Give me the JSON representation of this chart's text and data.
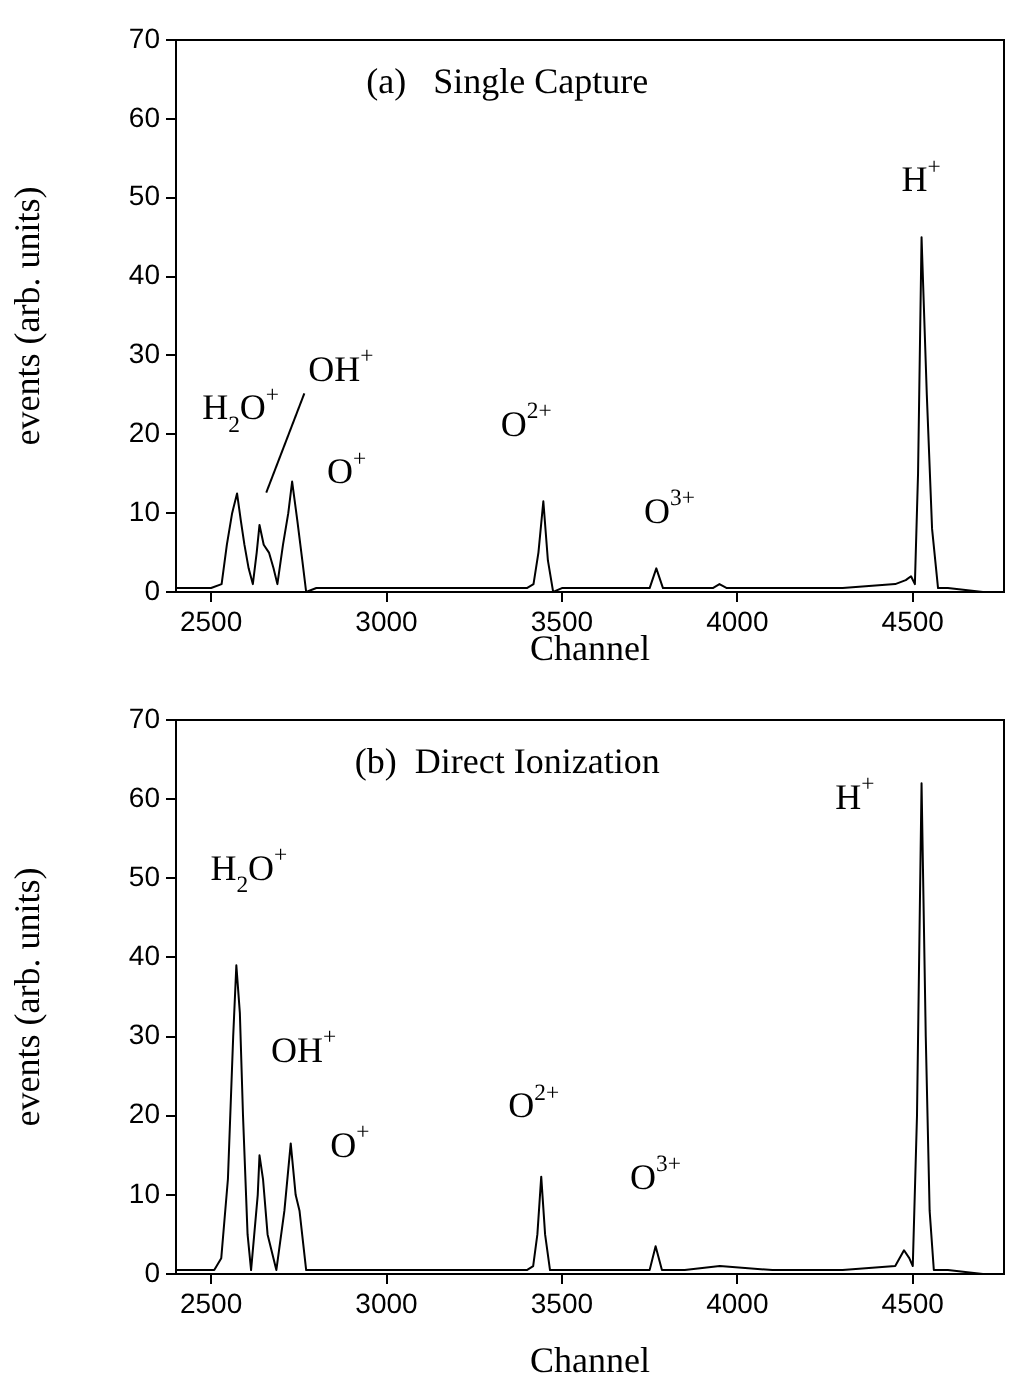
{
  "chart_data": [
    {
      "type": "line",
      "title": "(a)   Single Capture",
      "xlabel": "Channel",
      "ylabel": "events (arb. units)",
      "xlim": [
        2400,
        4760
      ],
      "xticks": [
        2500,
        3000,
        3500,
        4000,
        4500
      ],
      "ylim": [
        0,
        70
      ],
      "yticks": [
        0,
        10,
        20,
        30,
        40,
        50,
        60,
        70
      ],
      "grid": false,
      "legend": false,
      "marker": "none",
      "line_style": "solid",
      "series": [
        {
          "color": "#000000",
          "x": [
            2400,
            2450,
            2500,
            2530,
            2545,
            2560,
            2574,
            2585,
            2595,
            2607,
            2619,
            2630,
            2638,
            2650,
            2665,
            2678,
            2689,
            2705,
            2720,
            2731,
            2746,
            2760,
            2771,
            2800,
            2900,
            3000,
            3100,
            3200,
            3300,
            3400,
            3419,
            3433,
            3447,
            3460,
            3475,
            3500,
            3600,
            3700,
            3750,
            3769,
            3788,
            3850,
            3930,
            3949,
            3970,
            4100,
            4300,
            4450,
            4480,
            4495,
            4506,
            4515,
            4525,
            4540,
            4555,
            4572,
            4600,
            4700,
            4760
          ],
          "values": [
            0.5,
            0.5,
            0.5,
            1,
            6,
            10,
            12.5,
            9,
            6,
            3,
            1,
            5,
            8.5,
            6,
            5,
            3,
            1,
            6,
            10,
            14,
            9,
            4,
            0,
            0.5,
            0.5,
            0.5,
            0.5,
            0.5,
            0.5,
            0.5,
            1,
            5,
            11.5,
            4,
            0,
            0.5,
            0.5,
            0.5,
            0.5,
            3,
            0.5,
            0.5,
            0.5,
            1,
            0.5,
            0.5,
            0.5,
            1,
            1.5,
            2,
            1,
            15,
            45,
            25,
            8,
            0.5,
            0.5,
            0,
            0
          ]
        }
      ],
      "annotations": [
        "H$_{2}$O$^{+}$",
        "OH$^{+}$",
        "O$^{+}$",
        "O$^{2+}$",
        "O$^{3+}$",
        "H$^{+}$"
      ]
    },
    {
      "type": "line",
      "title": "(b)  Direct Ionization",
      "xlabel": "Channel",
      "ylabel": "events (arb. units)",
      "xlim": [
        2400,
        4760
      ],
      "xticks": [
        2500,
        3000,
        3500,
        4000,
        4500
      ],
      "ylim": [
        0,
        70
      ],
      "yticks": [
        0,
        10,
        20,
        30,
        40,
        50,
        60,
        70
      ],
      "grid": false,
      "legend": false,
      "marker": "none",
      "line_style": "solid",
      "series": [
        {
          "color": "#000000",
          "x": [
            2400,
            2450,
            2509,
            2529,
            2548,
            2563,
            2572,
            2582,
            2591,
            2604,
            2614,
            2633,
            2638,
            2648,
            2661,
            2686,
            2709,
            2727,
            2741,
            2752,
            2771,
            2800,
            2900,
            3000,
            3100,
            3200,
            3300,
            3400,
            3418,
            3430,
            3441,
            3452,
            3466,
            3500,
            3600,
            3700,
            3750,
            3767,
            3785,
            3850,
            3950,
            4100,
            4300,
            4450,
            4475,
            4490,
            4500,
            4512,
            4525,
            4537,
            4548,
            4560,
            4600,
            4700,
            4760
          ],
          "values": [
            0.5,
            0.5,
            0.5,
            2,
            12,
            30,
            39,
            33,
            20,
            5,
            0.5,
            10,
            15,
            12,
            5,
            0.5,
            8,
            16.5,
            10,
            8,
            0.5,
            0.5,
            0.5,
            0.5,
            0.5,
            0.5,
            0.5,
            0.5,
            1,
            5,
            12.3,
            5,
            0.5,
            0.5,
            0.5,
            0.5,
            0.5,
            3.5,
            0.5,
            0.5,
            1,
            0.5,
            0.5,
            1,
            3,
            2,
            1,
            20,
            62,
            30,
            8,
            0.5,
            0.5,
            0,
            0
          ]
        }
      ],
      "annotations": [
        "H$_{2}$O$^{+}$",
        "OH$^{+}$",
        "O$^{+}$",
        "O$^{2+}$",
        "O$^{3+}$",
        "H$^{+}$"
      ]
    }
  ]
}
